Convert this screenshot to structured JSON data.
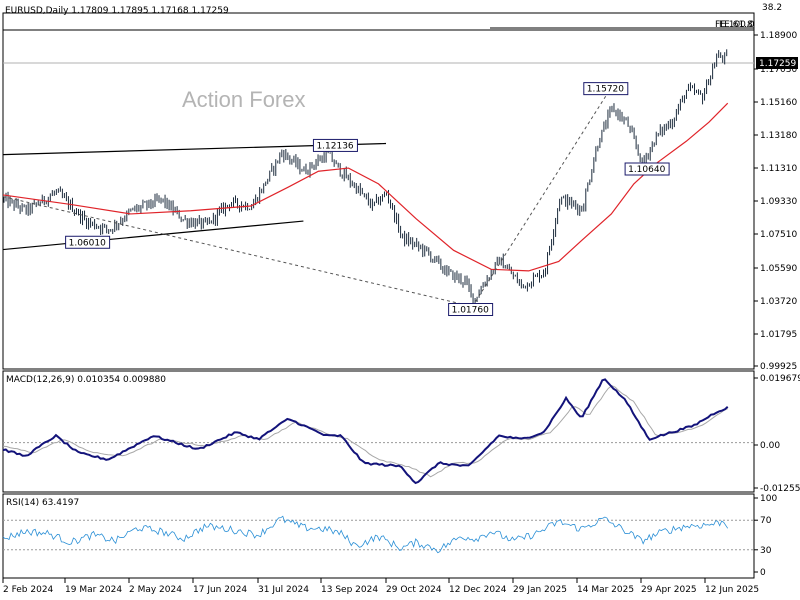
{
  "colors": {
    "candle": "#1c2b3c",
    "sma": "#e0242a",
    "macd_main": "#13137a",
    "macd_signal": "#a8a8a8",
    "rsi": "#2a8fd6",
    "trend": "#000000",
    "dash": "#555555",
    "grid_dash": "#9a9a9a"
  },
  "watermark": "Action Forex",
  "x_labels": [
    "2 Feb 2024",
    "19 Mar 2024",
    "2 May 2024",
    "17 Jun 2024",
    "31 Jul 2024",
    "13 Sep 2024",
    "29 Oct 2024",
    "12 Dec 2024",
    "29 Jan 2025",
    "14 Mar 2025",
    "29 Apr 2025",
    "12 Jun 2025"
  ],
  "chart_data": [
    {
      "type": "candlestick",
      "title": "EURUSD,Daily  1.17809 1.17895 1.17168 1.17259",
      "ylim": [
        0.98,
        1.205
      ],
      "y_ticks": [
        "1.18900",
        "1.17030",
        "1.15160",
        "1.13180",
        "1.11310",
        "1.09330",
        "1.07510",
        "1.05590",
        "1.03720",
        "1.01795",
        "0.99925"
      ],
      "current_price": "1.17259",
      "fib_labels": [
        "38.2",
        "FE 100.0",
        "FE 61.8"
      ],
      "annotations": [
        {
          "label": "1.12136",
          "x": 0.44,
          "y": 1.1213
        },
        {
          "label": "1.06010",
          "x": 0.11,
          "y": 1.0601
        },
        {
          "label": "1.01760",
          "x": 0.62,
          "y": 1.0176
        },
        {
          "label": "1.15720",
          "x": 0.8,
          "y": 1.1572
        },
        {
          "label": "1.10640",
          "x": 0.855,
          "y": 1.1064
        }
      ],
      "trendlines": [
        {
          "x": [
            0.0,
            0.51
          ],
          "y": [
            1.1155,
            1.1225
          ]
        },
        {
          "x": [
            0.0,
            0.4
          ],
          "y": [
            1.0555,
            1.0735
          ]
        }
      ],
      "dashed_lines": [
        {
          "x": [
            0.0,
            0.625
          ],
          "y": [
            1.089,
            1.0195
          ]
        },
        {
          "x": [
            0.625,
            0.81
          ],
          "y": [
            1.0195,
            1.158
          ]
        }
      ],
      "price_path": [
        [
          0.0,
          1.087
        ],
        [
          0.03,
          1.08
        ],
        [
          0.07,
          1.092
        ],
        [
          0.11,
          1.073
        ],
        [
          0.14,
          1.068
        ],
        [
          0.17,
          1.08
        ],
        [
          0.21,
          1.087
        ],
        [
          0.24,
          1.074
        ],
        [
          0.27,
          1.071
        ],
        [
          0.3,
          1.085
        ],
        [
          0.33,
          1.083
        ],
        [
          0.345,
          1.095
        ],
        [
          0.37,
          1.117
        ],
        [
          0.4,
          1.105
        ],
        [
          0.43,
          1.116
        ],
        [
          0.45,
          1.104
        ],
        [
          0.47,
          1.094
        ],
        [
          0.49,
          1.083
        ],
        [
          0.51,
          1.091
        ],
        [
          0.53,
          1.063
        ],
        [
          0.56,
          1.055
        ],
        [
          0.59,
          1.041
        ],
        [
          0.615,
          1.035
        ],
        [
          0.625,
          1.023
        ],
        [
          0.64,
          1.035
        ],
        [
          0.66,
          1.049
        ],
        [
          0.69,
          1.032
        ],
        [
          0.72,
          1.042
        ],
        [
          0.74,
          1.088
        ],
        [
          0.77,
          1.081
        ],
        [
          0.79,
          1.122
        ],
        [
          0.81,
          1.145
        ],
        [
          0.83,
          1.135
        ],
        [
          0.85,
          1.11
        ],
        [
          0.87,
          1.128
        ],
        [
          0.89,
          1.137
        ],
        [
          0.91,
          1.157
        ],
        [
          0.93,
          1.152
        ],
        [
          0.95,
          1.178
        ],
        [
          0.965,
          1.176
        ]
      ],
      "sma_path": [
        [
          0.0,
          1.09
        ],
        [
          0.09,
          1.084
        ],
        [
          0.17,
          1.078
        ],
        [
          0.25,
          1.08
        ],
        [
          0.33,
          1.083
        ],
        [
          0.38,
          1.095
        ],
        [
          0.42,
          1.105
        ],
        [
          0.46,
          1.107
        ],
        [
          0.5,
          1.097
        ],
        [
          0.55,
          1.075
        ],
        [
          0.6,
          1.055
        ],
        [
          0.65,
          1.043
        ],
        [
          0.7,
          1.042
        ],
        [
          0.74,
          1.048
        ],
        [
          0.77,
          1.061
        ],
        [
          0.81,
          1.078
        ],
        [
          0.84,
          1.097
        ],
        [
          0.87,
          1.11
        ],
        [
          0.91,
          1.124
        ],
        [
          0.94,
          1.136
        ],
        [
          0.965,
          1.148
        ]
      ]
    },
    {
      "type": "line",
      "title": "MACD(12,26,9) 0.010354 0.009880",
      "ylim": [
        -0.0145,
        0.021
      ],
      "y_ticks": [
        "0.019679",
        "0.00",
        "-0.012552"
      ],
      "zero_label": "0.00",
      "main_path": [
        [
          0.0,
          -0.002
        ],
        [
          0.03,
          -0.004
        ],
        [
          0.07,
          0.002
        ],
        [
          0.1,
          -0.003
        ],
        [
          0.14,
          -0.005
        ],
        [
          0.2,
          0.002
        ],
        [
          0.26,
          -0.002
        ],
        [
          0.31,
          0.003
        ],
        [
          0.34,
          0.001
        ],
        [
          0.38,
          0.007
        ],
        [
          0.43,
          0.002
        ],
        [
          0.45,
          0.002
        ],
        [
          0.48,
          -0.006
        ],
        [
          0.53,
          -0.007
        ],
        [
          0.55,
          -0.012
        ],
        [
          0.58,
          -0.006
        ],
        [
          0.62,
          -0.007
        ],
        [
          0.66,
          0.002
        ],
        [
          0.69,
          0.001
        ],
        [
          0.72,
          0.003
        ],
        [
          0.75,
          0.013
        ],
        [
          0.77,
          0.007
        ],
        [
          0.8,
          0.019
        ],
        [
          0.83,
          0.012
        ],
        [
          0.86,
          0.001
        ],
        [
          0.89,
          0.003
        ],
        [
          0.92,
          0.005
        ],
        [
          0.95,
          0.009
        ],
        [
          0.965,
          0.0103
        ]
      ],
      "signal_path": [
        [
          0.0,
          -0.001
        ],
        [
          0.04,
          -0.003
        ],
        [
          0.08,
          0.001
        ],
        [
          0.12,
          -0.003
        ],
        [
          0.16,
          -0.004
        ],
        [
          0.21,
          0.001
        ],
        [
          0.27,
          -0.001
        ],
        [
          0.32,
          0.002
        ],
        [
          0.35,
          0.001
        ],
        [
          0.39,
          0.006
        ],
        [
          0.44,
          0.002
        ],
        [
          0.46,
          0.001
        ],
        [
          0.5,
          -0.005
        ],
        [
          0.54,
          -0.007
        ],
        [
          0.57,
          -0.01
        ],
        [
          0.6,
          -0.006
        ],
        [
          0.63,
          -0.006
        ],
        [
          0.67,
          0.001
        ],
        [
          0.7,
          0.001
        ],
        [
          0.73,
          0.003
        ],
        [
          0.76,
          0.011
        ],
        [
          0.78,
          0.008
        ],
        [
          0.81,
          0.017
        ],
        [
          0.84,
          0.012
        ],
        [
          0.87,
          0.002
        ],
        [
          0.9,
          0.003
        ],
        [
          0.93,
          0.005
        ],
        [
          0.96,
          0.0095
        ],
        [
          0.965,
          0.0099
        ]
      ]
    },
    {
      "type": "line",
      "title": "RSI(14) 63.4197",
      "ylim": [
        0,
        100
      ],
      "y_ticks": [
        "100",
        "70",
        "30",
        "0"
      ],
      "levels": [
        70,
        30
      ],
      "path": [
        [
          0.0,
          45
        ],
        [
          0.03,
          55
        ],
        [
          0.06,
          52
        ],
        [
          0.09,
          40
        ],
        [
          0.12,
          50
        ],
        [
          0.15,
          42
        ],
        [
          0.18,
          60
        ],
        [
          0.21,
          55
        ],
        [
          0.24,
          45
        ],
        [
          0.27,
          62
        ],
        [
          0.3,
          58
        ],
        [
          0.34,
          50
        ],
        [
          0.37,
          72
        ],
        [
          0.4,
          60
        ],
        [
          0.43,
          58
        ],
        [
          0.45,
          52
        ],
        [
          0.47,
          35
        ],
        [
          0.5,
          48
        ],
        [
          0.53,
          32
        ],
        [
          0.55,
          40
        ],
        [
          0.58,
          30
        ],
        [
          0.61,
          48
        ],
        [
          0.63,
          45
        ],
        [
          0.65,
          55
        ],
        [
          0.68,
          42
        ],
        [
          0.71,
          52
        ],
        [
          0.74,
          68
        ],
        [
          0.77,
          58
        ],
        [
          0.8,
          72
        ],
        [
          0.83,
          55
        ],
        [
          0.85,
          42
        ],
        [
          0.88,
          55
        ],
        [
          0.91,
          62
        ],
        [
          0.94,
          64
        ],
        [
          0.96,
          68
        ],
        [
          0.965,
          63
        ]
      ]
    }
  ]
}
